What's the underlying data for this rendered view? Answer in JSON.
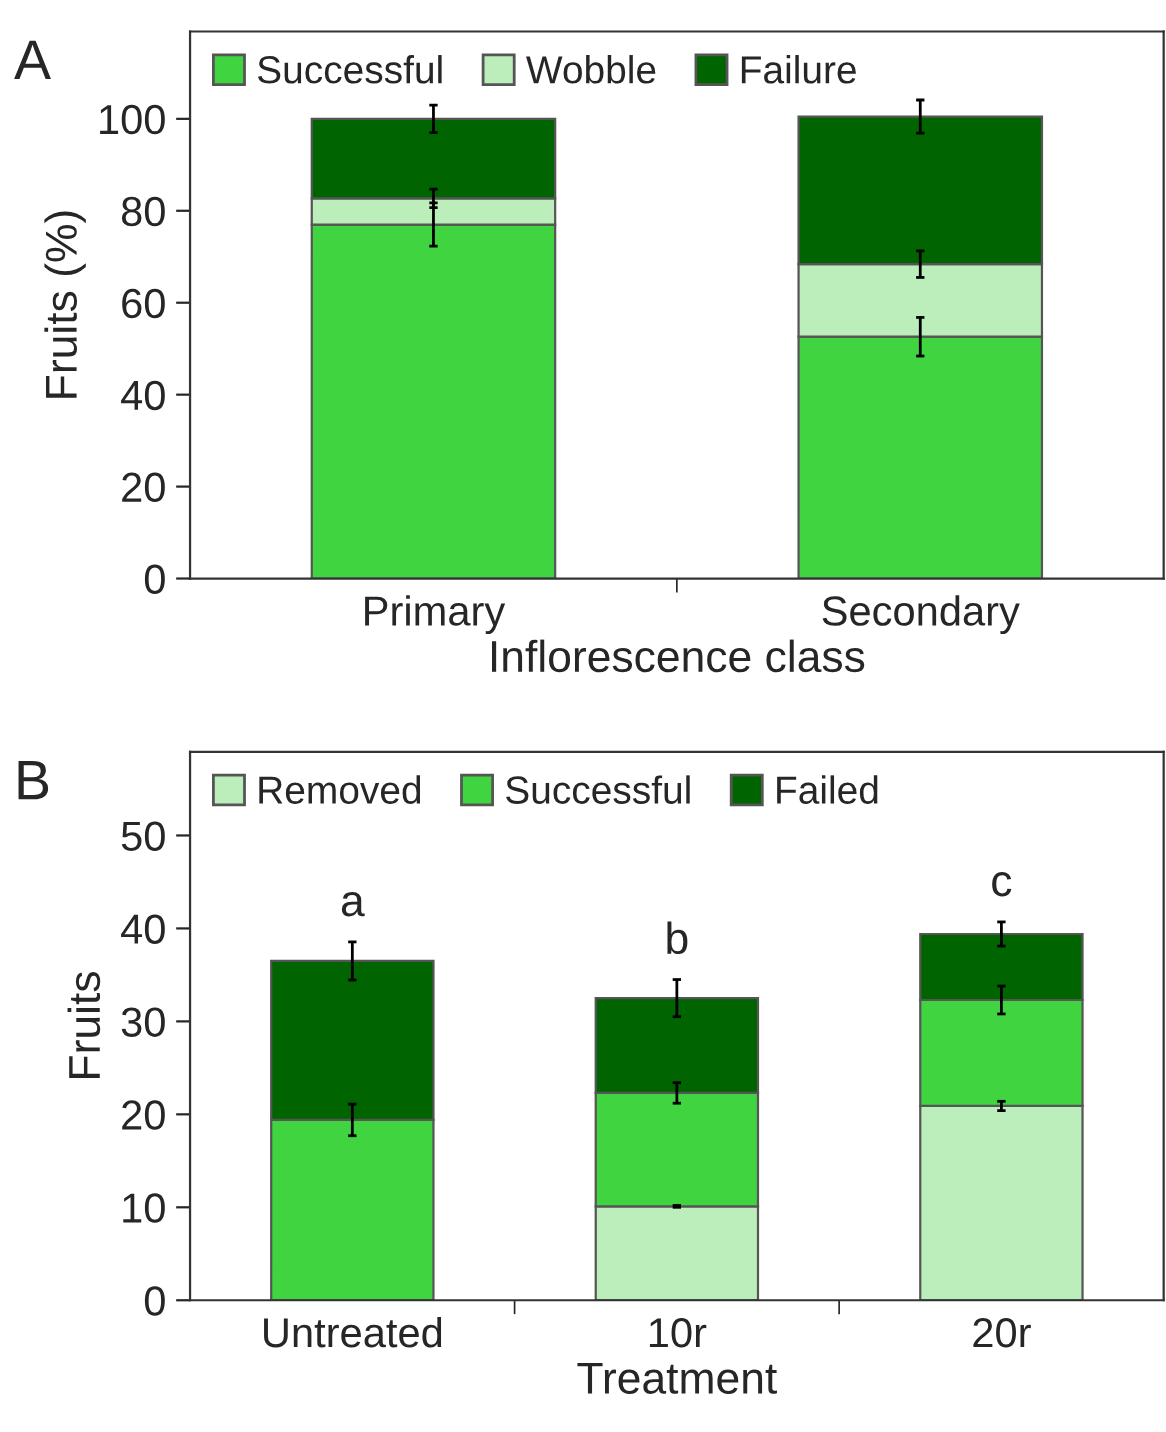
{
  "chart_data": [
    {
      "type": "bar",
      "title": "A",
      "stacked": true,
      "xlabel": "Inflorescence class",
      "ylabel": "Fruits (%)",
      "categories": [
        "Primary",
        "Secondary"
      ],
      "ylim": [
        0,
        119
      ],
      "yticks": [
        0,
        20,
        40,
        60,
        80,
        100
      ],
      "legend": "top left",
      "grid": false,
      "series": [
        {
          "name": "Successful",
          "color": "#41d441",
          "values": [
            77,
            52.6
          ],
          "errors": [
            4.7,
            4.2
          ]
        },
        {
          "name": "Wobble",
          "color": "#bbeebb",
          "values": [
            5.7,
            15.8
          ],
          "errors": [
            2,
            2.9
          ]
        },
        {
          "name": "Failure",
          "color": "#006400",
          "values": [
            17.3,
            32.1
          ],
          "errors": [
            3,
            3.6
          ]
        }
      ]
    },
    {
      "type": "bar",
      "title": "B",
      "stacked": true,
      "xlabel": "Treatment",
      "ylabel": "Fruits",
      "categories": [
        "Untreated",
        "10r",
        "20r"
      ],
      "ylim": [
        0,
        59
      ],
      "yticks": [
        0,
        10,
        20,
        30,
        40,
        50
      ],
      "legend": "top left",
      "grid": false,
      "annotations": [
        "a",
        "b",
        "c"
      ],
      "series": [
        {
          "name": "Removed",
          "color": "#bbeebb",
          "values": [
            0,
            10.1,
            20.9
          ],
          "errors": [
            null,
            0.1,
            0.5
          ]
        },
        {
          "name": "Successful",
          "color": "#41d441",
          "values": [
            19.4,
            12.2,
            11.4
          ],
          "errors": [
            1.7,
            1.1,
            1.5
          ]
        },
        {
          "name": "Failed",
          "color": "#006400",
          "values": [
            17.1,
            10.2,
            7.1
          ],
          "errors": [
            2.05,
            2.0,
            1.3
          ]
        }
      ]
    }
  ]
}
